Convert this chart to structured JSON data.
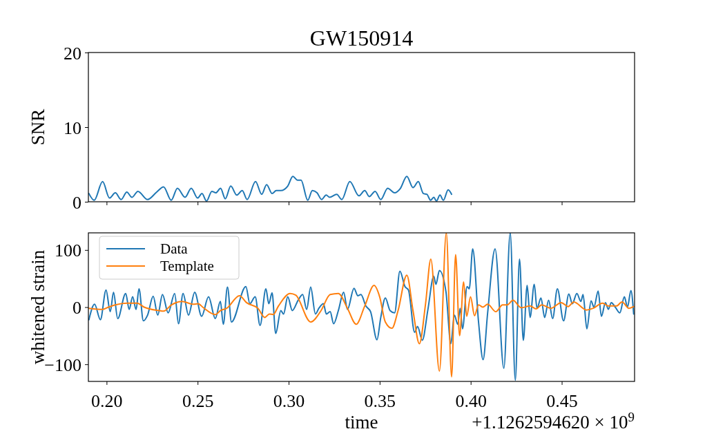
{
  "chart_data": [
    {
      "type": "line",
      "title": "GW150914",
      "ylabel": "SNR",
      "xlim": [
        0.19,
        0.49
      ],
      "ylim": [
        0,
        20
      ],
      "yticks": [
        0,
        10,
        20
      ],
      "xticks": [
        0.2,
        0.25,
        0.3,
        0.35,
        0.4,
        0.45
      ],
      "tick_labels": "y",
      "grid": false,
      "legend": false,
      "series": [
        {
          "color": "#1f77b4",
          "x": [
            0.1903,
            0.1932,
            0.1978,
            0.2016,
            0.2048,
            0.208,
            0.2111,
            0.2139,
            0.2172,
            0.2225,
            0.2275,
            0.2313,
            0.2355,
            0.2389,
            0.2431,
            0.2465,
            0.25,
            0.2524,
            0.2549,
            0.2578,
            0.26,
            0.2626,
            0.2652,
            0.2682,
            0.2715,
            0.2745,
            0.2772,
            0.2818,
            0.2852,
            0.2879,
            0.2909,
            0.2932,
            0.2957,
            0.2995,
            0.3023,
            0.3048,
            0.3068,
            0.3105,
            0.313,
            0.3156,
            0.3181,
            0.3206,
            0.3225,
            0.3264,
            0.3292,
            0.3336,
            0.3386,
            0.3418,
            0.3443,
            0.3475,
            0.3506,
            0.3544,
            0.3582,
            0.3614,
            0.3649,
            0.3683,
            0.3712,
            0.374,
            0.3759,
            0.378,
            0.3797,
            0.3812,
            0.3831,
            0.385,
            0.3876,
            0.3895
          ],
          "values": [
            1.1,
            0.2,
            2.7,
            0.5,
            1.2,
            0.3,
            1.3,
            0.6,
            1.4,
            0.3,
            1.3,
            2.0,
            0.2,
            1.8,
            0.6,
            1.8,
            0.5,
            1.1,
            0.1,
            1.4,
            1.2,
            1.8,
            0.4,
            2.1,
            0.9,
            1.5,
            0.3,
            2.7,
            1.0,
            2.3,
            1.1,
            1.5,
            1.5,
            2.1,
            3.4,
            2.9,
            2.9,
            0.2,
            1.5,
            1.2,
            0.3,
            0.9,
            0.6,
            1.0,
            0.3,
            2.7,
            0.8,
            1.5,
            0.7,
            1.4,
            0.3,
            1.8,
            1.2,
            1.8,
            3.4,
            1.9,
            2.7,
            1.1,
            1.0,
            0.2,
            0.6,
            0.1,
            0.9,
            0.2,
            1.6,
            1.0
          ]
        }
      ]
    },
    {
      "type": "line",
      "xlabel": "time",
      "ylabel": "whitened strain",
      "xlim": [
        0.19,
        0.49
      ],
      "ylim": [
        -130,
        130
      ],
      "yticks": [
        {
          "value": -100,
          "label": "−100"
        },
        0,
        100
      ],
      "xticks": [
        {
          "value": 0.2,
          "label": "0.20"
        },
        {
          "value": 0.25,
          "label": "0.25"
        },
        {
          "value": 0.3,
          "label": "0.30"
        },
        {
          "value": 0.35,
          "label": "0.35"
        },
        {
          "value": 0.4,
          "label": "0.40"
        },
        {
          "value": 0.45,
          "label": "0.45"
        }
      ],
      "grid": false,
      "legend": "top left",
      "annotations": [
        "+1.1262594620 × 10$^{9}$"
      ],
      "series": [
        {
          "name": "Data",
          "color": "#1f77b4",
          "x": [
            0.1903,
            0.1934,
            0.1966,
            0.1997,
            0.202,
            0.2038,
            0.2061,
            0.2105,
            0.2124,
            0.2143,
            0.2162,
            0.2178,
            0.2202,
            0.2225,
            0.2256,
            0.2281,
            0.2307,
            0.2338,
            0.2374,
            0.2395,
            0.242,
            0.245,
            0.2484,
            0.2522,
            0.256,
            0.2597,
            0.2625,
            0.2641,
            0.2664,
            0.2686,
            0.2765,
            0.2787,
            0.2816,
            0.2843,
            0.2875,
            0.2891,
            0.2909,
            0.2929,
            0.2957,
            0.2972,
            0.2995,
            0.302,
            0.3052,
            0.3077,
            0.3099,
            0.3121,
            0.3147,
            0.3166,
            0.3191,
            0.3207,
            0.3228,
            0.3247,
            0.3273,
            0.3302,
            0.3323,
            0.3359,
            0.338,
            0.3397,
            0.3424,
            0.345,
            0.3485,
            0.3506,
            0.3531,
            0.3557,
            0.3582,
            0.3611,
            0.3639,
            0.3658,
            0.3692,
            0.3708,
            0.3734,
            0.3765,
            0.3797,
            0.3809,
            0.3828,
            0.3864,
            0.3891,
            0.391,
            0.3929,
            0.3942,
            0.3955,
            0.398,
            0.3992,
            0.4011,
            0.4043,
            0.4068,
            0.4093,
            0.4134,
            0.4182,
            0.4217,
            0.4245,
            0.4268,
            0.4289,
            0.431,
            0.4326,
            0.4349,
            0.4364,
            0.4386,
            0.4406,
            0.4428,
            0.445,
            0.4476,
            0.451,
            0.4539,
            0.4558,
            0.4583,
            0.4605,
            0.4617,
            0.4638,
            0.4661,
            0.4677,
            0.47,
            0.4718,
            0.474,
            0.4756,
            0.4772,
            0.4794,
            0.4819,
            0.4844,
            0.4861,
            0.488,
            0.4895
          ],
          "values": [
            -22,
            5,
            -22,
            30,
            -8,
            26,
            -20,
            24,
            -4,
            18,
            -4,
            32,
            -24,
            -14,
            19,
            -14,
            22,
            -10,
            24,
            -29,
            24,
            -14,
            26,
            -16,
            18,
            -20,
            10,
            -30,
            35,
            -26,
            36,
            6,
            18,
            -32,
            32,
            6,
            25,
            -46,
            -6,
            -12,
            18,
            -6,
            12,
            22,
            -4,
            35,
            -12,
            -2,
            6,
            -12,
            -8,
            -29,
            -6,
            26,
            -4,
            33,
            20,
            22,
            2,
            -8,
            -57,
            -18,
            16,
            -6,
            -10,
            63,
            36,
            30,
            -44,
            -34,
            -58,
            -4,
            54,
            40,
            64,
            27,
            -64,
            -14,
            -30,
            -2,
            -38,
            36,
            32,
            102,
            -26,
            -92,
            -10,
            102,
            -107,
            130,
            -128,
            84,
            -58,
            38,
            -18,
            40,
            -2,
            16,
            -18,
            12,
            -20,
            32,
            -24,
            23,
            6,
            24,
            10,
            22,
            -38,
            11,
            0,
            28,
            -16,
            8,
            -4,
            8,
            0,
            -10,
            18,
            0,
            29,
            -12
          ]
        },
        {
          "name": "Template",
          "color": "#ff7f0e",
          "x": [
            0.1903,
            0.1978,
            0.201,
            0.2048,
            0.2111,
            0.2168,
            0.2206,
            0.2288,
            0.2313,
            0.2357,
            0.2414,
            0.2477,
            0.2503,
            0.2528,
            0.2597,
            0.2626,
            0.266,
            0.273,
            0.2768,
            0.2831,
            0.2869,
            0.2894,
            0.2915,
            0.2944,
            0.3008,
            0.3039,
            0.3121,
            0.3178,
            0.3228,
            0.3273,
            0.3323,
            0.3371,
            0.3418,
            0.3469,
            0.35,
            0.3531,
            0.3567,
            0.3601,
            0.3649,
            0.3683,
            0.3718,
            0.3752,
            0.3781,
            0.3828,
            0.3866,
            0.3895,
            0.3917,
            0.3939,
            0.3961,
            0.3978,
            0.3999,
            0.4021,
            0.4043,
            0.4066,
            0.4093,
            0.4138,
            0.4175,
            0.4201,
            0.4232,
            0.4277,
            0.4326,
            0.4359,
            0.439,
            0.444,
            0.4497,
            0.4535,
            0.4566,
            0.4636,
            0.4673,
            0.4724,
            0.4756,
            0.48,
            0.4831,
            0.4869,
            0.4895
          ],
          "values": [
            -2,
            -4,
            0,
            4,
            7,
            7,
            0,
            -6,
            -7,
            4,
            10,
            5,
            6,
            0,
            -13,
            -6,
            -2,
            20,
            8,
            -2,
            -18,
            -12,
            -13,
            2,
            24,
            21,
            -26,
            -6,
            22,
            24,
            -2,
            -30,
            2,
            38,
            18,
            -26,
            -37,
            -6,
            56,
            -6,
            -64,
            6,
            84,
            -112,
            130,
            -122,
            92,
            -50,
            44,
            -16,
            18,
            -15,
            4,
            0,
            5,
            -8,
            4,
            4,
            12,
            -1,
            2,
            -3,
            4,
            -2,
            8,
            1,
            9,
            -5,
            -2,
            7,
            2,
            2,
            9,
            -2,
            1
          ]
        }
      ]
    }
  ]
}
